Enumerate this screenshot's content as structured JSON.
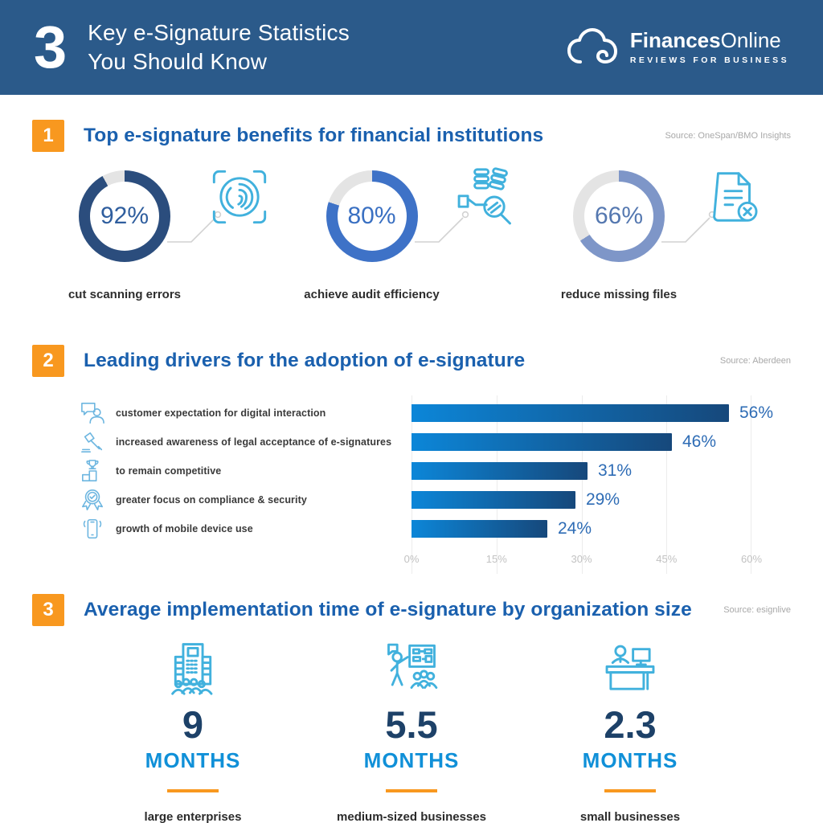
{
  "header": {
    "count": "3",
    "title_line1": "Key e-Signature Statistics",
    "title_line2": "You Should Know",
    "brand": {
      "name_bold": "Finances",
      "name_light": "Online",
      "tagline": "REVIEWS FOR BUSINESS"
    }
  },
  "colors": {
    "header_bg": "#2b5a8a",
    "accent_orange": "#f8981f",
    "section_title_blue": "#1a60ae",
    "icon_light_blue": "#41b1dd",
    "bar_value_blue": "#2e6cb5",
    "number_navy": "#1d4168",
    "months_blue": "#1090d8",
    "source_gray": "#a8a8a8"
  },
  "chart_data": [
    {
      "type": "pie",
      "subtype": "donut-trio",
      "badge": "1",
      "title": "Top e-signature benefits for financial institutions",
      "source": "Source: OneSpan/BMO Insights",
      "track_color": "#e4e4e4",
      "items": [
        {
          "value": 92,
          "value_label": "92%",
          "label": "cut scanning errors",
          "ring_color": "#2b4d7d",
          "number_color": "#2f5e9e",
          "icon": "fingerprint-scan-icon"
        },
        {
          "value": 80,
          "value_label": "80%",
          "label": "achieve audit efficiency",
          "ring_color": "#3e72c7",
          "number_color": "#3a70c2",
          "icon": "audit-magnifier-icon"
        },
        {
          "value": 66,
          "value_label": "66%",
          "label": "reduce missing files",
          "ring_color": "#7e96c8",
          "number_color": "#5578b0",
          "icon": "missing-file-icon"
        }
      ]
    },
    {
      "type": "bar",
      "orientation": "horizontal",
      "badge": "2",
      "title": "Leading drivers for the adoption of e-signature",
      "source": "Source: Aberdeen",
      "categories": [
        "customer expectation for digital interaction",
        "increased awareness of legal acceptance of e-signatures",
        "to remain competitive",
        "greater focus on compliance & security",
        "growth of mobile device use"
      ],
      "category_icons": [
        "customer-chat-icon",
        "gavel-icon",
        "podium-trophy-icon",
        "shield-check-icon",
        "mobile-phone-icon"
      ],
      "values": [
        56,
        46,
        31,
        29,
        24
      ],
      "value_labels": [
        "56%",
        "46%",
        "31%",
        "29%",
        "24%"
      ],
      "xlim": [
        0,
        60
      ],
      "x_ticks": [
        "0%",
        "15%",
        "30%",
        "45%",
        "60%"
      ],
      "grid": true,
      "legend": false,
      "bar_gradient": [
        "#0c86d8",
        "#16487b"
      ]
    },
    {
      "type": "table",
      "badge": "3",
      "title": "Average implementation time of e-signature by organization size",
      "source": "Source: esignlive",
      "items": [
        {
          "value": "9",
          "unit": "MONTHS",
          "label": "large enterprises",
          "icon": "office-building-icon"
        },
        {
          "value": "5.5",
          "unit": "MONTHS",
          "label": "medium-sized businesses",
          "icon": "presenter-training-icon"
        },
        {
          "value": "2.3",
          "unit": "MONTHS",
          "label": "small businesses",
          "icon": "person-desk-icon"
        }
      ]
    }
  ]
}
